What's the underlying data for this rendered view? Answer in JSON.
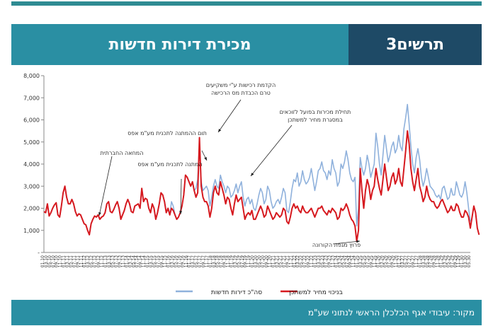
{
  "header": {
    "title": "מכירת דירות חדשות",
    "label": "תרשים3"
  },
  "source": "מקור: עיבודי אגף הכלכלן הראשי לנתוני שע\"מ",
  "colors": {
    "total": "#8fb1dc",
    "discounted": "#d6191f",
    "title_bg": "#2a8fa3",
    "label_bg": "#1e4a66"
  },
  "chart_data": {
    "type": "line",
    "ylim": [
      0,
      8000
    ],
    "yticks": [
      "-",
      "1,000",
      "2,000",
      "3,000",
      "4,000",
      "5,000",
      "6,000",
      "7,000",
      "8,000"
    ],
    "x_start": "2010-01",
    "x_end": "2023-06",
    "series": [
      {
        "name": "סה\"כ דירות חדשות",
        "color": "#8fb1dc",
        "values": [
          1850,
          1800,
          2200,
          1650,
          1800,
          2000,
          2150,
          2250,
          1700,
          1600,
          2100,
          2700,
          3000,
          2500,
          2200,
          2200,
          2400,
          2200,
          1850,
          1650,
          1750,
          1700,
          1500,
          1300,
          1250,
          1000,
          800,
          1300,
          1500,
          1650,
          1600,
          1700,
          1500,
          1600,
          1650,
          1800,
          2200,
          2300,
          1850,
          1800,
          1950,
          2150,
          2300,
          2000,
          1500,
          1700,
          1900,
          2200,
          2400,
          2200,
          1850,
          1800,
          2100,
          2150,
          2200,
          2000,
          2900,
          2300,
          2450,
          2400,
          2000,
          1800,
          2200,
          2000,
          1500,
          1800,
          2200,
          2700,
          2600,
          2300,
          1800,
          2000,
          1700,
          2300,
          2100,
          1700,
          1500,
          1600,
          1800,
          2100,
          2600,
          3500,
          3400,
          3200,
          3000,
          3200,
          2800,
          2900,
          3300,
          4900,
          3200,
          2800,
          2900,
          3000,
          2800,
          2100,
          2500,
          3000,
          3300,
          3000,
          2900,
          3500,
          3200,
          3000,
          2700,
          3000,
          2900,
          2500,
          2600,
          2800,
          3100,
          2700,
          3000,
          3200,
          2500,
          2100,
          2400,
          2500,
          2200,
          2400,
          2000,
          1900,
          2200,
          2600,
          2900,
          2700,
          2200,
          2400,
          3000,
          2800,
          2300,
          2000,
          2100,
          2300,
          2400,
          2200,
          2500,
          2900,
          2700,
          1900,
          1800,
          2300,
          2900,
          3300,
          3200,
          3600,
          3000,
          3200,
          3700,
          3300,
          3100,
          3200,
          3400,
          3800,
          3300,
          2800,
          3200,
          3700,
          3800,
          4100,
          3700,
          3600,
          3300,
          3700,
          3500,
          4200,
          3800,
          3600,
          3000,
          3200,
          4000,
          3800,
          4100,
          4600,
          4200,
          3600,
          3300,
          3200,
          3400,
          1200,
          2000,
          4300,
          3800,
          3500,
          3800,
          4400,
          4000,
          3400,
          3700,
          4000,
          5400,
          4800,
          4000,
          3500,
          4400,
          5300,
          4700,
          4100,
          4400,
          4800,
          5000,
          4500,
          4700,
          5300,
          4800,
          4600,
          5600,
          6100,
          6700,
          5800,
          4800,
          4000,
          3600,
          4300,
          4700,
          4200,
          3400,
          3000,
          3300,
          3800,
          3400,
          3000,
          2900,
          2800,
          2600,
          2500,
          2600,
          2400,
          2900,
          3000,
          2700,
          2400,
          2500,
          2900,
          2600,
          2600,
          3200,
          2900,
          2600,
          2500,
          2700,
          3200,
          2700,
          2000,
          1400
        ]
      },
      {
        "name": "בניכוי מחיר למשתכן",
        "color": "#d6191f",
        "values": [
          1850,
          1800,
          2200,
          1650,
          1800,
          2000,
          2150,
          2250,
          1700,
          1600,
          2100,
          2700,
          3000,
          2500,
          2200,
          2200,
          2400,
          2200,
          1850,
          1650,
          1750,
          1700,
          1500,
          1300,
          1250,
          1000,
          800,
          1300,
          1500,
          1650,
          1600,
          1700,
          1500,
          1600,
          1650,
          1800,
          2200,
          2300,
          1850,
          1800,
          1950,
          2150,
          2300,
          2000,
          1500,
          1700,
          1900,
          2200,
          2400,
          2200,
          1850,
          1800,
          2100,
          2150,
          2200,
          2000,
          2900,
          2300,
          2450,
          2400,
          2000,
          1800,
          2200,
          2000,
          1500,
          1800,
          2200,
          2700,
          2600,
          2300,
          1800,
          2000,
          1700,
          2000,
          1900,
          1700,
          1500,
          1600,
          1800,
          2100,
          2600,
          3500,
          3400,
          3200,
          3000,
          3200,
          2800,
          2500,
          2700,
          5200,
          3000,
          2500,
          2300,
          2300,
          2100,
          1600,
          2000,
          2700,
          3000,
          2700,
          2600,
          3200,
          2900,
          2600,
          2200,
          2500,
          2400,
          2000,
          1700,
          2200,
          2600,
          2300,
          2400,
          2500,
          2000,
          1500,
          1700,
          1800,
          1700,
          1900,
          1500,
          1500,
          1700,
          1900,
          2100,
          1900,
          1600,
          1700,
          2100,
          1900,
          1700,
          1500,
          1600,
          1800,
          1700,
          1600,
          1700,
          2000,
          1900,
          1400,
          1300,
          1600,
          2000,
          2200,
          2000,
          2100,
          1900,
          1800,
          2100,
          1900,
          1800,
          1800,
          1900,
          2000,
          1800,
          1600,
          1800,
          2000,
          2000,
          2100,
          1900,
          1800,
          1700,
          1900,
          1800,
          2000,
          1900,
          1800,
          1500,
          1600,
          2000,
          1900,
          2000,
          2200,
          2000,
          1700,
          1500,
          1400,
          1200,
          500,
          1000,
          3800,
          2800,
          2000,
          2800,
          3300,
          3000,
          2400,
          2800,
          3000,
          3800,
          3300,
          2900,
          2600,
          3300,
          4000,
          3400,
          2800,
          3000,
          3400,
          3600,
          3100,
          3300,
          3800,
          3200,
          3000,
          3800,
          4600,
          5500,
          4900,
          3800,
          3200,
          2800,
          3300,
          3800,
          3000,
          2700,
          2300,
          2500,
          3000,
          2600,
          2400,
          2300,
          2300,
          2100,
          2000,
          2100,
          2300,
          2400,
          2200,
          2000,
          1800,
          1900,
          2100,
          1900,
          1900,
          2200,
          2100,
          1800,
          1600,
          1600,
          1900,
          1800,
          1600,
          1100,
          1600,
          2100,
          1800,
          1100,
          800
        ]
      }
    ],
    "annotations": [
      {
        "text": "המחאה החברתית"
      },
      {
        "text": "המתנה לתכנית מע\"מ אפס"
      },
      {
        "text": "תום ההמתנה לתכנית מע\"מ אפס"
      },
      {
        "text": "הקדמת רכישות ע\"י משקיעים טרם הכבדת מס הרכישה"
      },
      {
        "text": "תחילת מכירות בפועל לזוכאים במסגרת מחיר למשתכן"
      },
      {
        "text": "פרוץ מגפת הקורונה"
      }
    ]
  }
}
